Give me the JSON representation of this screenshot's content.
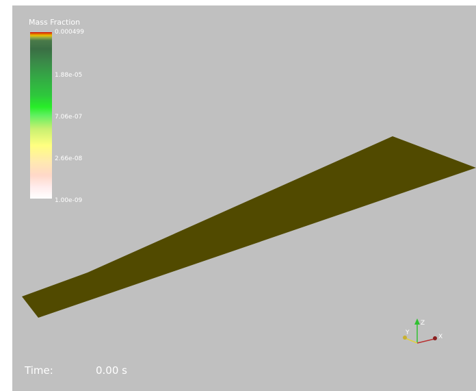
{
  "legend": {
    "title": "Mass Fraction",
    "ticks": [
      "0.000499",
      "1.88e-05",
      "7.06e-07",
      "2.66e-08",
      "1.00e-09"
    ]
  },
  "time": {
    "label": "Time:",
    "value": "0.00 s"
  },
  "axes": {
    "x": "X",
    "y": "Y",
    "z": "Z"
  },
  "colors": {
    "background": "#c0c0c0",
    "surface": "#514a00",
    "x_axis": "#b83030",
    "y_axis": "#e0d040",
    "z_axis": "#30c030"
  }
}
